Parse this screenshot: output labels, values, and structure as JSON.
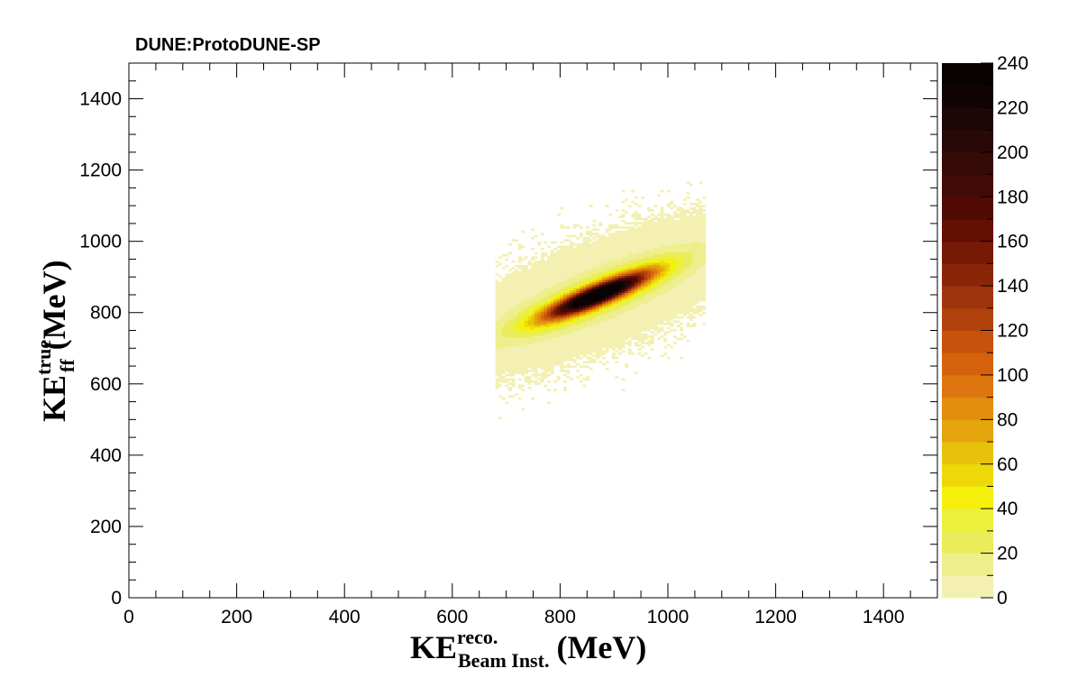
{
  "chart_data": {
    "type": "heatmap",
    "title": "DUNE:ProtoDUNE-SP",
    "xlabel": {
      "main": "KE",
      "sup": "reco.",
      "sub": "Beam  Inst.",
      "unit": "(MeV)"
    },
    "ylabel": {
      "main": "KE",
      "sup": "true",
      "sub": "ff",
      "unit": "(MeV)"
    },
    "xlim": [
      0,
      1500
    ],
    "ylim": [
      0,
      1500
    ],
    "zlim": [
      0,
      240
    ],
    "x_ticks": [
      "0",
      "200",
      "400",
      "600",
      "800",
      "1000",
      "1200",
      "1400"
    ],
    "y_ticks": [
      "0",
      "200",
      "400",
      "600",
      "800",
      "1000",
      "1200",
      "1400"
    ],
    "z_ticks": [
      "0",
      "20",
      "40",
      "60",
      "80",
      "100",
      "120",
      "140",
      "160",
      "180",
      "200",
      "220",
      "240"
    ],
    "distribution": {
      "peak_x": 870,
      "peak_y": 850,
      "peak_z": 240,
      "x_range": [
        680,
        1070
      ],
      "y_range": [
        400,
        1280
      ],
      "correlation": 0.85
    },
    "palette": [
      "#f3f0b2",
      "#eeee8c",
      "#eaec5c",
      "#ecf03a",
      "#f4f00c",
      "#eed808",
      "#e8c20a",
      "#e4a40c",
      "#e28e0c",
      "#de7610",
      "#d4620c",
      "#c6520c",
      "#b2420c",
      "#9e340c",
      "#8a2608",
      "#761a06",
      "#640e04",
      "#520a04",
      "#420a04",
      "#360a06",
      "#280808",
      "#1e0606",
      "#120404",
      "#0a0202"
    ],
    "grid": false,
    "legend": "color-bar-right"
  }
}
